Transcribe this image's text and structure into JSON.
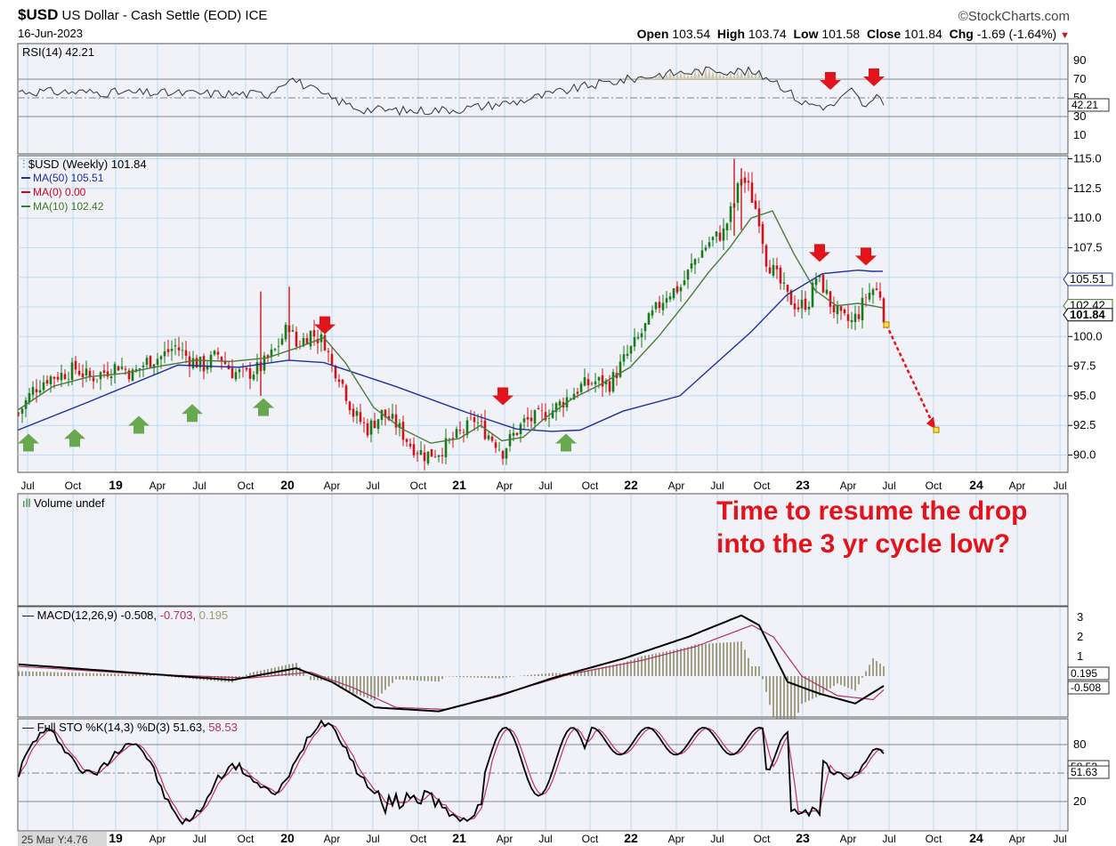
{
  "header": {
    "symbol": "$USD",
    "name": "US Dollar - Cash Settle (EOD)",
    "exchange": "ICE",
    "date": "16-Jun-2023",
    "brand": "©StockCharts.com",
    "open_label": "Open",
    "open": "103.54",
    "high_label": "High",
    "high": "103.74",
    "low_label": "Low",
    "low": "101.58",
    "close_label": "Close",
    "close": "101.84",
    "chg_label": "Chg",
    "chg": "-1.69 (-1.64%)"
  },
  "annotation": {
    "line1": "Time to resume the drop",
    "line2": "into the 3 yr cycle low?"
  },
  "footer_label": "25 Mar Y:4.76",
  "colors": {
    "up": "#1a7a1a",
    "down": "#c8161b",
    "ma50": "#1f2f9e",
    "ma0": "#d0021b",
    "ma10": "#3b7a2a",
    "panel_bg": "#f0f2f8",
    "grid": "#bcd9ef",
    "arrow_red": "#e3131b",
    "arrow_green": "#6aa84f"
  },
  "chart_data": [
    {
      "type": "line",
      "title": "RSI(14) 42.21",
      "series": [
        {
          "name": "RSI(14)",
          "last": 42.21
        }
      ],
      "y_ticks": [
        "90",
        "70",
        "50",
        "30",
        "10"
      ],
      "last_label": "42.21",
      "ylim": [
        0,
        100
      ]
    },
    {
      "type": "candlestick",
      "title": "$USD (Weekly) 101.84",
      "legend": [
        {
          "name": "MA(50) 105.51",
          "color": "#1f2f9e"
        },
        {
          "name": "MA(0) 0.00",
          "color": "#d0021b"
        },
        {
          "name": "MA(10) 102.42",
          "color": "#3b7a2a"
        }
      ],
      "x_ticks": [
        "Jul",
        "Oct",
        "19",
        "Apr",
        "Jul",
        "Oct",
        "20",
        "Apr",
        "Jul",
        "Oct",
        "21",
        "Apr",
        "Jul",
        "Oct",
        "22",
        "Apr",
        "Jul",
        "Oct",
        "23",
        "Apr",
        "Jul",
        "Oct",
        "24",
        "Apr",
        "Jul"
      ],
      "y_ticks": [
        "115.0",
        "112.5",
        "110.0",
        "107.5",
        "105.0",
        "102.5",
        "100.0",
        "97.5",
        "95.0",
        "92.5",
        "90.0"
      ],
      "ylim": [
        88.8,
        115.4
      ],
      "price_path": [
        [
          0,
          93.5
        ],
        [
          4,
          95.5
        ],
        [
          8,
          96.5
        ],
        [
          12,
          96.8
        ],
        [
          16,
          97.3
        ],
        [
          20,
          96.5
        ],
        [
          24,
          97.0
        ],
        [
          28,
          97.6
        ],
        [
          32,
          96.8
        ],
        [
          36,
          97.9
        ],
        [
          40,
          98.3
        ],
        [
          44,
          99.2
        ],
        [
          48,
          98.1
        ],
        [
          52,
          97.5
        ],
        [
          56,
          98.5
        ],
        [
          60,
          97.0
        ],
        [
          64,
          96.8
        ],
        [
          68,
          97.4
        ],
        [
          72,
          98.8
        ],
        [
          76,
          101.0
        ],
        [
          78,
          99.2
        ],
        [
          82,
          100.3
        ],
        [
          86,
          99.5
        ],
        [
          88,
          97.5
        ],
        [
          90,
          96.8
        ],
        [
          94,
          93.5
        ],
        [
          98,
          92.2
        ],
        [
          102,
          93.5
        ],
        [
          106,
          92.6
        ],
        [
          110,
          90.9
        ],
        [
          114,
          90.0
        ],
        [
          118,
          90.3
        ],
        [
          122,
          91.3
        ],
        [
          126,
          92.3
        ],
        [
          128,
          93.0
        ],
        [
          131,
          92.0
        ],
        [
          134,
          91.1
        ],
        [
          136,
          90.3
        ],
        [
          138,
          91.3
        ],
        [
          142,
          92.8
        ],
        [
          146,
          93.2
        ],
        [
          150,
          93.8
        ],
        [
          154,
          94.8
        ],
        [
          158,
          95.8
        ],
        [
          162,
          96.2
        ],
        [
          166,
          96.0
        ],
        [
          170,
          98.0
        ],
        [
          174,
          99.8
        ],
        [
          178,
          101.8
        ],
        [
          182,
          103.6
        ],
        [
          186,
          104.2
        ],
        [
          190,
          106.5
        ],
        [
          194,
          108.0
        ],
        [
          198,
          108.8
        ],
        [
          201,
          111.3
        ],
        [
          203,
          113.5
        ],
        [
          205,
          112.5
        ],
        [
          208,
          110.0
        ],
        [
          210,
          106.5
        ],
        [
          213,
          105.0
        ],
        [
          216,
          103.3
        ],
        [
          219,
          102.5
        ],
        [
          222,
          103.0
        ],
        [
          224,
          105.0
        ],
        [
          226,
          104.2
        ],
        [
          228,
          102.8
        ],
        [
          231,
          101.5
        ],
        [
          234,
          101.2
        ],
        [
          236,
          102.0
        ],
        [
          238,
          103.4
        ],
        [
          240,
          104.0
        ],
        [
          242,
          103.6
        ],
        [
          243,
          101.84
        ]
      ],
      "ma50_path": [
        [
          0,
          92.1
        ],
        [
          20,
          94.5
        ],
        [
          45,
          97.6
        ],
        [
          62,
          97.4
        ],
        [
          76,
          98.0
        ],
        [
          86,
          97.8
        ],
        [
          106,
          95.8
        ],
        [
          126,
          93.6
        ],
        [
          140,
          92.2
        ],
        [
          150,
          92.0
        ],
        [
          158,
          92.1
        ],
        [
          170,
          93.7
        ],
        [
          186,
          95.0
        ],
        [
          196,
          97.7
        ],
        [
          206,
          100.4
        ],
        [
          216,
          103.5
        ],
        [
          226,
          105.3
        ],
        [
          236,
          105.6
        ],
        [
          240,
          105.5
        ],
        [
          243,
          105.51
        ]
      ],
      "ma10_path": [
        [
          0,
          93.8
        ],
        [
          10,
          95.8
        ],
        [
          20,
          96.6
        ],
        [
          30,
          96.9
        ],
        [
          40,
          97.5
        ],
        [
          50,
          98.0
        ],
        [
          60,
          97.9
        ],
        [
          70,
          98.2
        ],
        [
          78,
          99.0
        ],
        [
          86,
          99.9
        ],
        [
          92,
          97.8
        ],
        [
          100,
          94.0
        ],
        [
          108,
          92.2
        ],
        [
          116,
          91.0
        ],
        [
          124,
          91.4
        ],
        [
          130,
          92.5
        ],
        [
          136,
          91.2
        ],
        [
          142,
          91.5
        ],
        [
          148,
          93.1
        ],
        [
          156,
          94.8
        ],
        [
          164,
          96.0
        ],
        [
          172,
          97.4
        ],
        [
          180,
          100.0
        ],
        [
          188,
          103.0
        ],
        [
          194,
          105.4
        ],
        [
          200,
          107.5
        ],
        [
          206,
          110.0
        ],
        [
          212,
          110.6
        ],
        [
          218,
          107.0
        ],
        [
          224,
          103.9
        ],
        [
          230,
          102.6
        ],
        [
          236,
          102.8
        ],
        [
          240,
          102.6
        ],
        [
          243,
          102.42
        ]
      ],
      "forecast": [
        [
          101.0,
          243
        ],
        [
          92.2,
          257
        ]
      ],
      "red_arrows": [
        [
          86,
          100.2
        ],
        [
          136,
          94.2
        ],
        [
          225,
          106.3
        ],
        [
          238,
          106.0
        ]
      ],
      "green_arrows": [
        [
          1,
          91.8
        ],
        [
          14,
          92.2
        ],
        [
          32,
          93.3
        ],
        [
          47,
          94.3
        ],
        [
          67,
          94.8
        ],
        [
          152,
          91.8
        ]
      ],
      "price_label": "101.84",
      "ma50_label": "105.51",
      "ma10_label": "102.42"
    },
    {
      "type": "bar",
      "title": "Volume undef",
      "values": []
    },
    {
      "type": "line",
      "title": "MACD(12,26,9) -0.508, -0.703, 0.195",
      "series": [
        {
          "name": "MACD(12,26,9)",
          "last": -0.508
        },
        {
          "name": "Signal",
          "last": -0.703
        },
        {
          "name": "Histogram",
          "last": 0.195
        }
      ],
      "title_parts": [
        "MACD(12,26,9) -0.508, ",
        "-0.703, ",
        "0.195"
      ],
      "y_ticks": [
        "3",
        "2",
        "1"
      ],
      "labels": [
        "0.195",
        "-0.508"
      ]
    },
    {
      "type": "line",
      "title": "Full STO %K(14,3) %D(3) 51.63, 58.53",
      "series": [
        {
          "name": "%K(14,3)",
          "last": 51.63
        },
        {
          "name": "%D(3)",
          "last": 58.53
        }
      ],
      "title_parts": [
        "Full STO %K(14,3) %D(3) 51.63, ",
        "58.53"
      ],
      "y_ticks": [
        "80",
        "20"
      ],
      "labels": [
        "58.53",
        "51.63"
      ]
    }
  ]
}
